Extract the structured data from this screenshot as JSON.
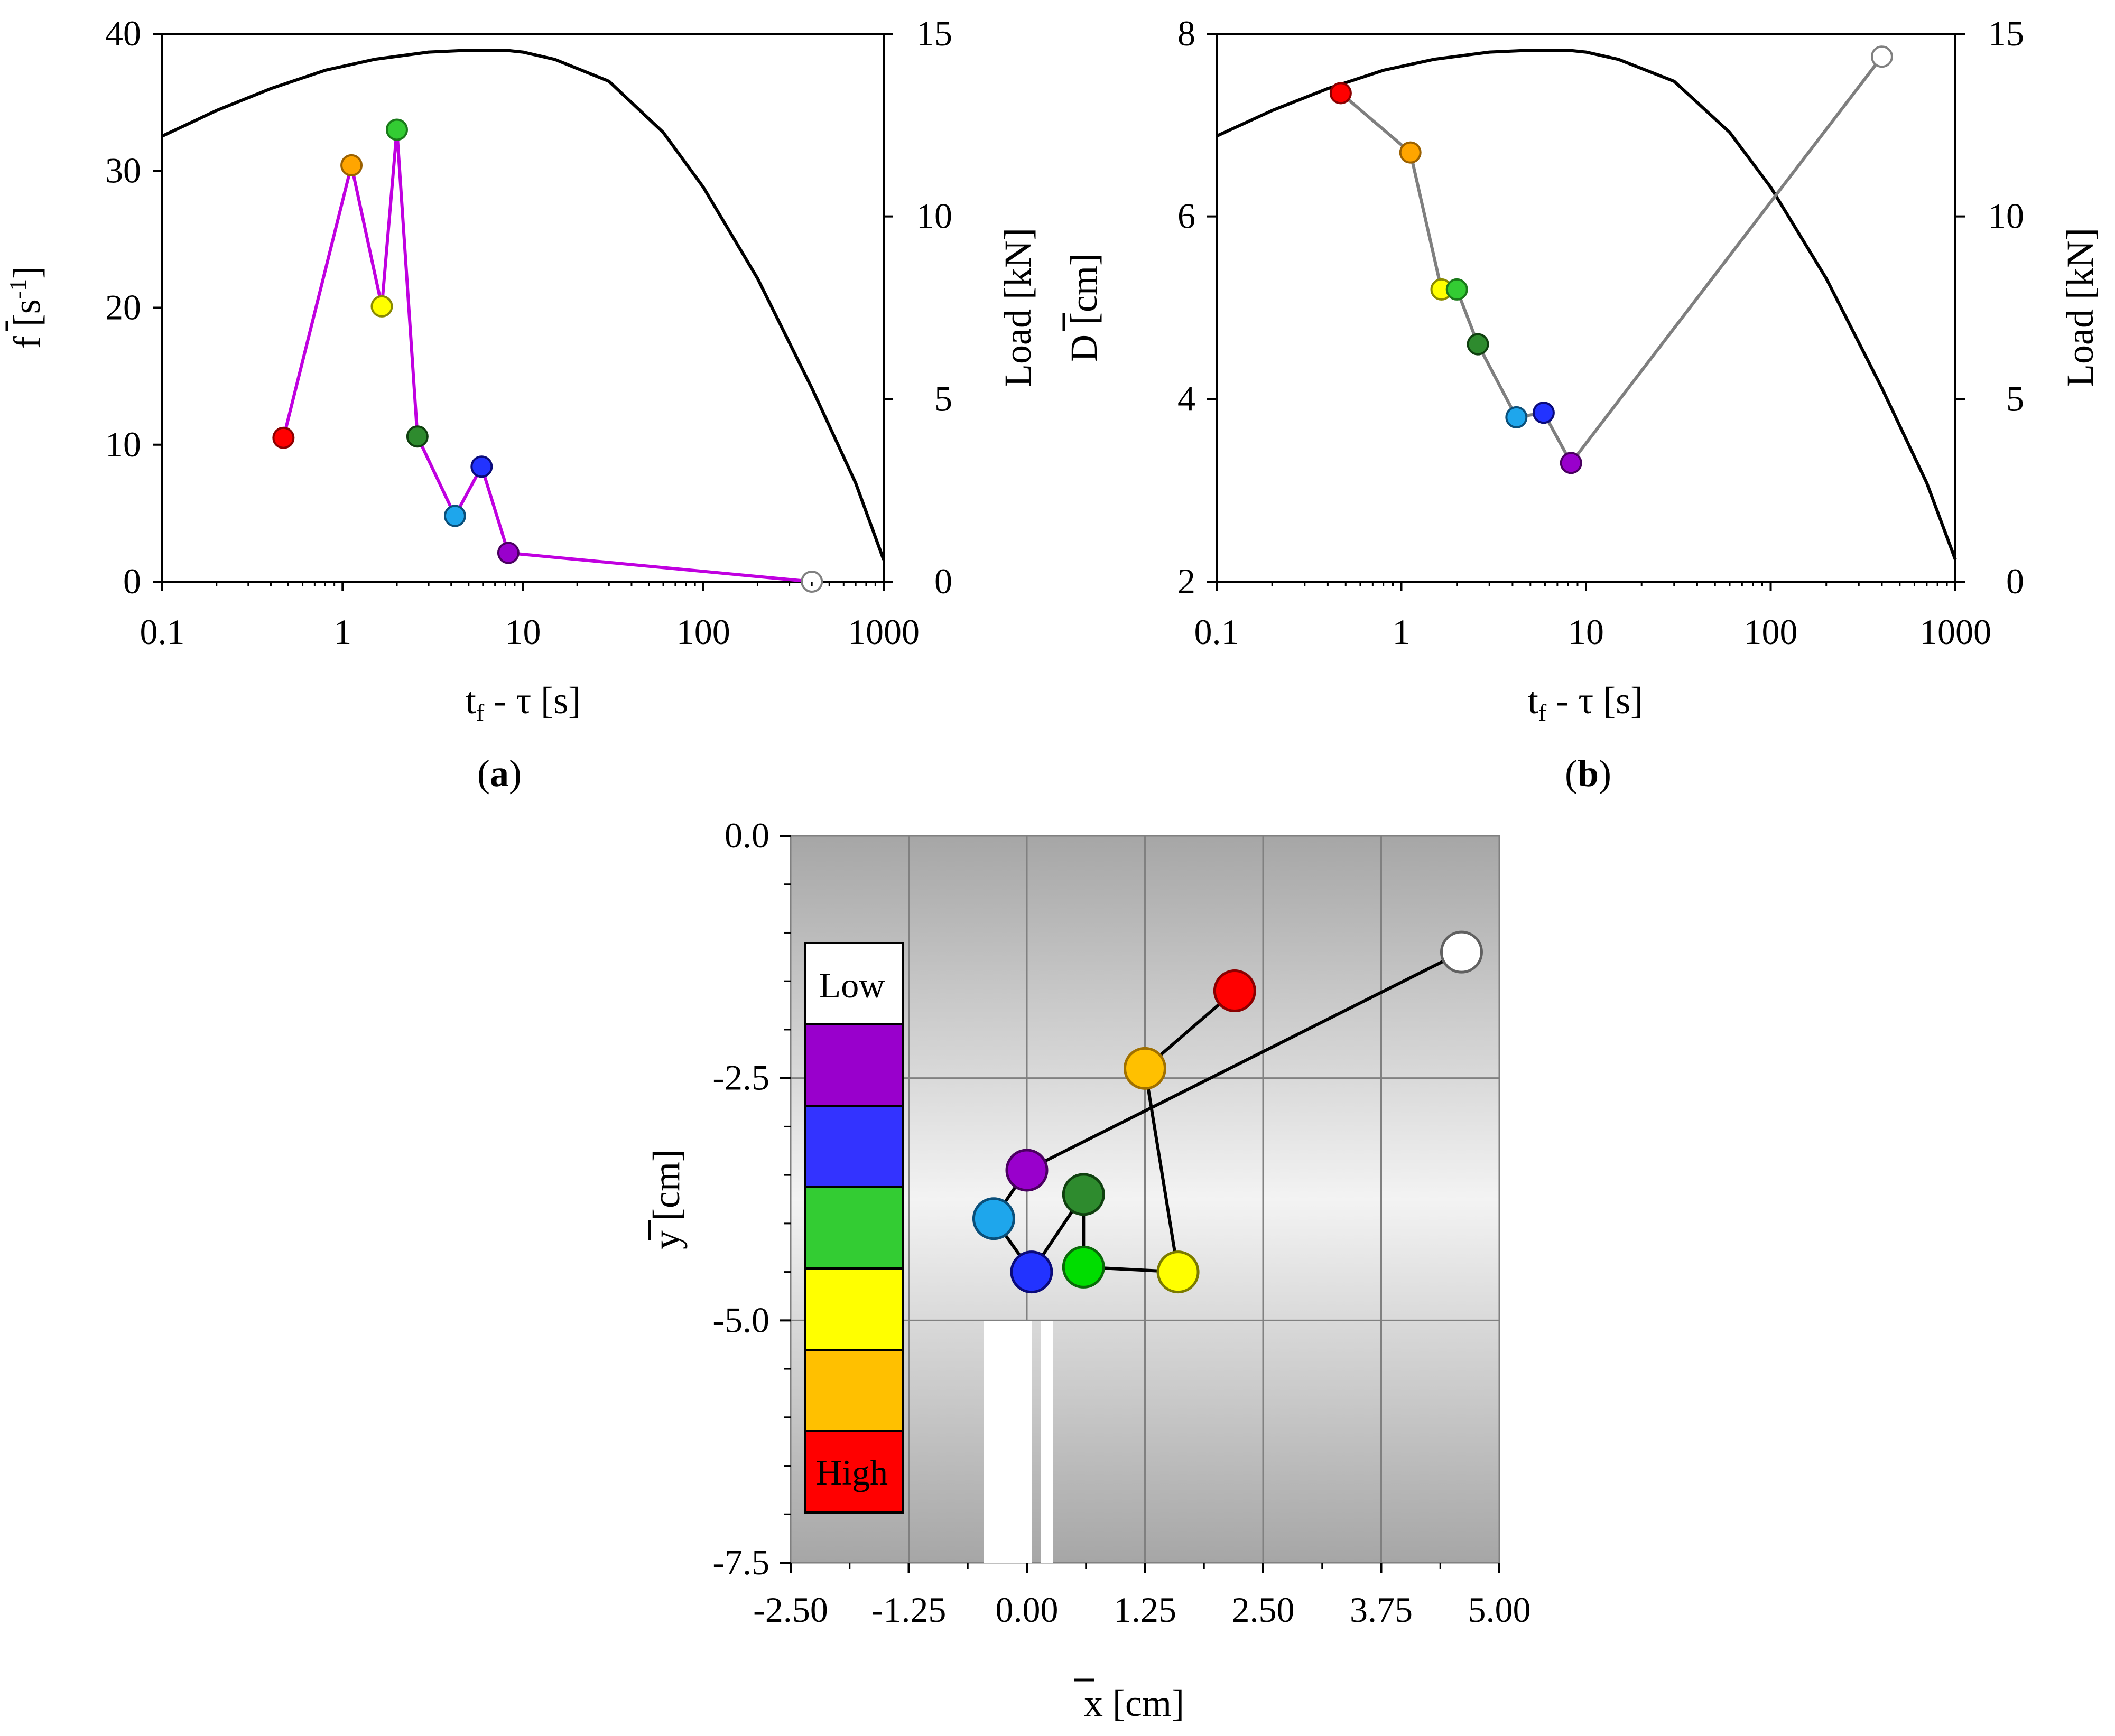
{
  "chart_data": [
    {
      "id": "a",
      "type": "line",
      "panel_label": "(a)",
      "panel_letter": "a",
      "xscale": "log",
      "xlim": [
        0.1,
        1000
      ],
      "x_ticks": [
        0.1,
        1,
        10,
        100,
        1000
      ],
      "x_tick_labels": [
        "0.1",
        "1",
        "10",
        "100",
        "1000"
      ],
      "ylim": [
        0,
        40
      ],
      "y_ticks": [
        0,
        10,
        20,
        30,
        40
      ],
      "y_tick_labels": [
        "0",
        "10",
        "20",
        "30",
        "40"
      ],
      "y2lim": [
        0,
        15
      ],
      "y2_ticks": [
        0,
        5,
        10,
        15
      ],
      "y2_tick_labels": [
        "0",
        "5",
        "10",
        "15"
      ],
      "xlabel": "t",
      "xlabel_sub": "f",
      "xlabel_rest": " - τ [s]",
      "ylabel": "f [s",
      "ylabel_sup": "-1",
      "ylabel_end": "]",
      "y2label": "Load [kN]",
      "series": [
        {
          "name": "f-bar",
          "axis": "left",
          "line_color": "#c000e0",
          "x": [
            0.47,
            1.12,
            1.65,
            2.0,
            2.6,
            4.2,
            5.9,
            8.3,
            400
          ],
          "y": [
            10.5,
            30.4,
            20.1,
            33.0,
            10.6,
            4.8,
            8.4,
            2.1,
            0.0
          ],
          "colors": [
            "#ff0000",
            "#ffa500",
            "#ffff00",
            "#33cc33",
            "#2e8b2e",
            "#1ea6ec",
            "#2233ff",
            "#9900cc",
            "#ffffff"
          ],
          "edge_colors": [
            "#8a0000",
            "#9a6000",
            "#8a8a00",
            "#1a7a1a",
            "#0f400f",
            "#0a4f7a",
            "#0a0a7a",
            "#4a0060",
            "#808080"
          ]
        },
        {
          "name": "Load",
          "axis": "right",
          "line_color": "#000000",
          "x": [
            0.1,
            0.2,
            0.4,
            0.8,
            1.5,
            3,
            5,
            8,
            10,
            15,
            30,
            60,
            100,
            200,
            400,
            700,
            1000
          ],
          "y": [
            12.2,
            12.9,
            13.5,
            14.0,
            14.3,
            14.5,
            14.55,
            14.55,
            14.5,
            14.3,
            13.7,
            12.3,
            10.8,
            8.3,
            5.3,
            2.7,
            0.6
          ]
        }
      ]
    },
    {
      "id": "b",
      "type": "line",
      "panel_label": "(b)",
      "panel_letter": "b",
      "xscale": "log",
      "xlim": [
        0.1,
        1000
      ],
      "x_ticks": [
        0.1,
        1,
        10,
        100,
        1000
      ],
      "x_tick_labels": [
        "0.1",
        "1",
        "10",
        "100",
        "1000"
      ],
      "ylim": [
        2,
        8
      ],
      "y_ticks": [
        2,
        4,
        6,
        8
      ],
      "y_tick_labels": [
        "2",
        "4",
        "6",
        "8"
      ],
      "y2lim": [
        0,
        15
      ],
      "y2_ticks": [
        0,
        5,
        10,
        15
      ],
      "y2_tick_labels": [
        "0",
        "5",
        "10",
        "15"
      ],
      "xlabel": "t",
      "xlabel_sub": "f",
      "xlabel_rest": " - τ [s]",
      "ylabel": "D [cm]",
      "y2label": "Load [kN]",
      "series": [
        {
          "name": "D-bar",
          "axis": "left",
          "line_color": "#7f7f7f",
          "x": [
            0.47,
            1.12,
            1.65,
            2.0,
            2.6,
            4.2,
            5.9,
            8.3,
            400
          ],
          "y": [
            7.35,
            6.7,
            5.2,
            5.2,
            4.6,
            3.8,
            3.85,
            3.3,
            7.75
          ],
          "colors": [
            "#ff0000",
            "#ffa500",
            "#ffff00",
            "#33cc33",
            "#2e8b2e",
            "#1ea6ec",
            "#2233ff",
            "#9900cc",
            "#ffffff"
          ],
          "edge_colors": [
            "#8a0000",
            "#9a6000",
            "#8a8a00",
            "#1a7a1a",
            "#0f400f",
            "#0a4f7a",
            "#0a0a7a",
            "#4a0060",
            "#808080"
          ]
        },
        {
          "name": "Load",
          "axis": "right",
          "line_color": "#000000",
          "x": [
            0.1,
            0.2,
            0.4,
            0.8,
            1.5,
            3,
            5,
            8,
            10,
            15,
            30,
            60,
            100,
            200,
            400,
            700,
            1000
          ],
          "y": [
            12.2,
            12.9,
            13.5,
            14.0,
            14.3,
            14.5,
            14.55,
            14.55,
            14.5,
            14.3,
            13.7,
            12.3,
            10.8,
            8.3,
            5.3,
            2.7,
            0.6
          ]
        }
      ]
    },
    {
      "id": "c",
      "type": "scatter",
      "xlim": [
        -2.5,
        5.0
      ],
      "x_ticks": [
        -2.5,
        -1.25,
        0.0,
        1.25,
        2.5,
        3.75,
        5.0
      ],
      "x_tick_labels": [
        "-2.50",
        "-1.25",
        "0.00",
        "1.25",
        "2.50",
        "3.75",
        "5.00"
      ],
      "ylim": [
        -7.5,
        0.0
      ],
      "y_ticks": [
        0.0,
        -2.5,
        -5.0,
        -7.5
      ],
      "y_tick_labels": [
        "0.0",
        "-2.5",
        "-5.0",
        "-7.5"
      ],
      "xlabel": "x [cm]",
      "ylabel": "y [cm]",
      "grid": true,
      "series": [
        {
          "name": "centroid-path",
          "line_color": "#000000",
          "x": [
            2.2,
            1.25,
            1.6,
            0.6,
            0.6,
            0.05,
            -0.35,
            0.0,
            4.6
          ],
          "y": [
            -1.6,
            -2.4,
            -4.5,
            -4.45,
            -3.7,
            -4.5,
            -3.95,
            -3.45,
            -1.2
          ],
          "colors": [
            "#ff0000",
            "#ffc000",
            "#ffff00",
            "#00dd00",
            "#2e8b2e",
            "#2233ff",
            "#1ea6ec",
            "#9900cc",
            "#ffffff"
          ],
          "edge_colors": [
            "#8a0000",
            "#a07000",
            "#7a7a00",
            "#0a6a0a",
            "#0f400f",
            "#0a0a7a",
            "#0a4f7a",
            "#4a0060",
            "#606060"
          ]
        }
      ],
      "legend": {
        "position": "left",
        "low_label": "Low",
        "high_label": "High",
        "colors": [
          "#ffffff",
          "#9900cc",
          "#3333ff",
          "#33cc33",
          "#ffff00",
          "#ffc000",
          "#ff0000"
        ]
      }
    }
  ]
}
